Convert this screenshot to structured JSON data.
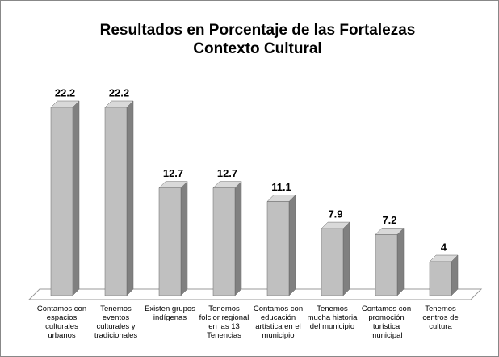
{
  "chart_data": {
    "type": "bar3d",
    "title": [
      "Resultados en Porcentaje de las Fortalezas",
      "Contexto Cultural"
    ],
    "categories": [
      "Contamos con espacios culturales urbanos",
      "Tenemos eventos culturales y tradicionales",
      "Existen grupos indígenas",
      "Tenemos folclor regional en las 13 Tenencias",
      "Contamos con educación artística en el municipio",
      "Tenemos mucha historia del municipio",
      "Contamos con promoción turística municipal",
      "Tenemos centros de cultura"
    ],
    "values": [
      22.2,
      22.2,
      12.7,
      12.7,
      11.1,
      7.9,
      7.2,
      4
    ],
    "color": "#c0c0c0"
  }
}
